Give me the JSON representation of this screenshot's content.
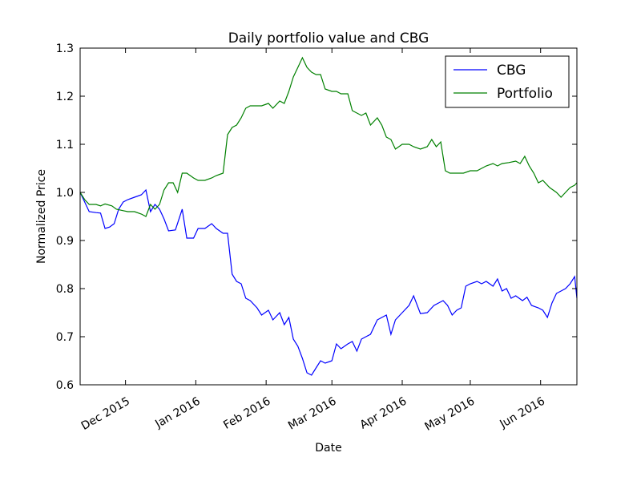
{
  "chart_data": {
    "type": "line",
    "title": "Daily portfolio value and CBG",
    "xlabel": "Date",
    "ylabel": "Normalized Price",
    "ylim": [
      0.6,
      1.3
    ],
    "xlim": [
      "2015-11-11",
      "2016-06-17"
    ],
    "grid": false,
    "legend_position": "top-right",
    "yticks": [
      0.6,
      0.7,
      0.8,
      0.9,
      1.0,
      1.1,
      1.2,
      1.3
    ],
    "ytick_labels": [
      "0.6",
      "0.7",
      "0.8",
      "0.9",
      "1.0",
      "1.1",
      "1.2",
      "1.3"
    ],
    "xticks": [
      {
        "date": "2015-12-01",
        "label": "Dec 2015"
      },
      {
        "date": "2016-01-01",
        "label": "Jan 2016"
      },
      {
        "date": "2016-02-01",
        "label": "Feb 2016"
      },
      {
        "date": "2016-03-01",
        "label": "Mar 2016"
      },
      {
        "date": "2016-04-01",
        "label": "Apr 2016"
      },
      {
        "date": "2016-05-01",
        "label": "May 2016"
      },
      {
        "date": "2016-06-01",
        "label": "Jun 2016"
      }
    ],
    "series": [
      {
        "name": "CBG",
        "color": "#0000ff",
        "points": [
          [
            "2015-11-11",
            1.0
          ],
          [
            "2015-11-13",
            0.98
          ],
          [
            "2015-11-15",
            0.96
          ],
          [
            "2015-11-18",
            0.958
          ],
          [
            "2015-11-20",
            0.957
          ],
          [
            "2015-11-22",
            0.925
          ],
          [
            "2015-11-24",
            0.928
          ],
          [
            "2015-11-26",
            0.935
          ],
          [
            "2015-11-28",
            0.965
          ],
          [
            "2015-11-30",
            0.98
          ],
          [
            "2015-12-02",
            0.985
          ],
          [
            "2015-12-05",
            0.99
          ],
          [
            "2015-12-08",
            0.995
          ],
          [
            "2015-12-10",
            1.005
          ],
          [
            "2015-12-12",
            0.96
          ],
          [
            "2015-12-14",
            0.975
          ],
          [
            "2015-12-16",
            0.965
          ],
          [
            "2015-12-18",
            0.945
          ],
          [
            "2015-12-20",
            0.92
          ],
          [
            "2015-12-23",
            0.922
          ],
          [
            "2015-12-26",
            0.965
          ],
          [
            "2015-12-28",
            0.905
          ],
          [
            "2015-12-31",
            0.905
          ],
          [
            "2016-01-02",
            0.925
          ],
          [
            "2016-01-05",
            0.925
          ],
          [
            "2016-01-08",
            0.935
          ],
          [
            "2016-01-10",
            0.925
          ],
          [
            "2016-01-13",
            0.915
          ],
          [
            "2016-01-15",
            0.915
          ],
          [
            "2016-01-17",
            0.83
          ],
          [
            "2016-01-19",
            0.815
          ],
          [
            "2016-01-21",
            0.81
          ],
          [
            "2016-01-23",
            0.78
          ],
          [
            "2016-01-25",
            0.775
          ],
          [
            "2016-01-28",
            0.76
          ],
          [
            "2016-01-30",
            0.745
          ],
          [
            "2016-02-02",
            0.755
          ],
          [
            "2016-02-04",
            0.735
          ],
          [
            "2016-02-07",
            0.75
          ],
          [
            "2016-02-09",
            0.725
          ],
          [
            "2016-02-11",
            0.74
          ],
          [
            "2016-02-13",
            0.695
          ],
          [
            "2016-02-15",
            0.68
          ],
          [
            "2016-02-17",
            0.655
          ],
          [
            "2016-02-19",
            0.625
          ],
          [
            "2016-02-21",
            0.62
          ],
          [
            "2016-02-23",
            0.635
          ],
          [
            "2016-02-25",
            0.65
          ],
          [
            "2016-02-27",
            0.645
          ],
          [
            "2016-03-01",
            0.65
          ],
          [
            "2016-03-03",
            0.685
          ],
          [
            "2016-03-05",
            0.675
          ],
          [
            "2016-03-08",
            0.685
          ],
          [
            "2016-03-10",
            0.69
          ],
          [
            "2016-03-12",
            0.67
          ],
          [
            "2016-03-14",
            0.695
          ],
          [
            "2016-03-16",
            0.7
          ],
          [
            "2016-03-18",
            0.705
          ],
          [
            "2016-03-21",
            0.735
          ],
          [
            "2016-03-23",
            0.74
          ],
          [
            "2016-03-25",
            0.745
          ],
          [
            "2016-03-27",
            0.705
          ],
          [
            "2016-03-29",
            0.735
          ],
          [
            "2016-04-01",
            0.75
          ],
          [
            "2016-04-04",
            0.765
          ],
          [
            "2016-04-06",
            0.785
          ],
          [
            "2016-04-09",
            0.748
          ],
          [
            "2016-04-12",
            0.75
          ],
          [
            "2016-04-15",
            0.765
          ],
          [
            "2016-04-17",
            0.77
          ],
          [
            "2016-04-19",
            0.775
          ],
          [
            "2016-04-21",
            0.765
          ],
          [
            "2016-04-23",
            0.745
          ],
          [
            "2016-04-25",
            0.755
          ],
          [
            "2016-04-27",
            0.76
          ],
          [
            "2016-04-29",
            0.805
          ],
          [
            "2016-05-01",
            0.81
          ],
          [
            "2016-05-04",
            0.815
          ],
          [
            "2016-05-06",
            0.81
          ],
          [
            "2016-05-08",
            0.815
          ],
          [
            "2016-05-11",
            0.805
          ],
          [
            "2016-05-13",
            0.82
          ],
          [
            "2016-05-15",
            0.795
          ],
          [
            "2016-05-17",
            0.8
          ],
          [
            "2016-05-19",
            0.78
          ],
          [
            "2016-05-21",
            0.785
          ],
          [
            "2016-05-24",
            0.775
          ],
          [
            "2016-05-26",
            0.782
          ],
          [
            "2016-05-28",
            0.765
          ],
          [
            "2016-05-31",
            0.76
          ],
          [
            "2016-06-02",
            0.755
          ],
          [
            "2016-06-04",
            0.74
          ],
          [
            "2016-06-06",
            0.77
          ],
          [
            "2016-06-08",
            0.79
          ],
          [
            "2016-06-10",
            0.795
          ],
          [
            "2016-06-12",
            0.8
          ],
          [
            "2016-06-14",
            0.81
          ],
          [
            "2016-06-16",
            0.825
          ],
          [
            "2016-06-17",
            0.78
          ]
        ]
      },
      {
        "name": "Portfolio",
        "color": "#008000",
        "points": [
          [
            "2015-11-11",
            1.0
          ],
          [
            "2015-11-13",
            0.985
          ],
          [
            "2015-11-15",
            0.975
          ],
          [
            "2015-11-18",
            0.975
          ],
          [
            "2015-11-20",
            0.972
          ],
          [
            "2015-11-22",
            0.976
          ],
          [
            "2015-11-25",
            0.972
          ],
          [
            "2015-11-27",
            0.965
          ],
          [
            "2015-11-30",
            0.962
          ],
          [
            "2015-12-02",
            0.96
          ],
          [
            "2015-12-05",
            0.96
          ],
          [
            "2015-12-08",
            0.955
          ],
          [
            "2015-12-10",
            0.95
          ],
          [
            "2015-12-12",
            0.975
          ],
          [
            "2015-12-14",
            0.965
          ],
          [
            "2015-12-16",
            0.975
          ],
          [
            "2015-12-18",
            1.005
          ],
          [
            "2015-12-20",
            1.02
          ],
          [
            "2015-12-22",
            1.02
          ],
          [
            "2015-12-24",
            1.0
          ],
          [
            "2015-12-26",
            1.04
          ],
          [
            "2015-12-28",
            1.04
          ],
          [
            "2015-12-31",
            1.03
          ],
          [
            "2016-01-02",
            1.025
          ],
          [
            "2016-01-05",
            1.025
          ],
          [
            "2016-01-08",
            1.03
          ],
          [
            "2016-01-10",
            1.035
          ],
          [
            "2016-01-13",
            1.04
          ],
          [
            "2016-01-15",
            1.12
          ],
          [
            "2016-01-17",
            1.135
          ],
          [
            "2016-01-19",
            1.14
          ],
          [
            "2016-01-21",
            1.155
          ],
          [
            "2016-01-23",
            1.175
          ],
          [
            "2016-01-25",
            1.18
          ],
          [
            "2016-01-28",
            1.18
          ],
          [
            "2016-01-30",
            1.18
          ],
          [
            "2016-02-02",
            1.185
          ],
          [
            "2016-02-04",
            1.175
          ],
          [
            "2016-02-07",
            1.19
          ],
          [
            "2016-02-09",
            1.185
          ],
          [
            "2016-02-11",
            1.21
          ],
          [
            "2016-02-13",
            1.24
          ],
          [
            "2016-02-15",
            1.26
          ],
          [
            "2016-02-17",
            1.28
          ],
          [
            "2016-02-19",
            1.26
          ],
          [
            "2016-02-21",
            1.25
          ],
          [
            "2016-02-23",
            1.245
          ],
          [
            "2016-02-25",
            1.245
          ],
          [
            "2016-02-27",
            1.215
          ],
          [
            "2016-03-01",
            1.21
          ],
          [
            "2016-03-03",
            1.21
          ],
          [
            "2016-03-05",
            1.205
          ],
          [
            "2016-03-08",
            1.205
          ],
          [
            "2016-03-10",
            1.17
          ],
          [
            "2016-03-12",
            1.165
          ],
          [
            "2016-03-14",
            1.16
          ],
          [
            "2016-03-16",
            1.165
          ],
          [
            "2016-03-18",
            1.14
          ],
          [
            "2016-03-21",
            1.155
          ],
          [
            "2016-03-23",
            1.14
          ],
          [
            "2016-03-25",
            1.115
          ],
          [
            "2016-03-27",
            1.11
          ],
          [
            "2016-03-29",
            1.09
          ],
          [
            "2016-04-01",
            1.1
          ],
          [
            "2016-04-04",
            1.1
          ],
          [
            "2016-04-06",
            1.095
          ],
          [
            "2016-04-09",
            1.09
          ],
          [
            "2016-04-12",
            1.095
          ],
          [
            "2016-04-14",
            1.11
          ],
          [
            "2016-04-16",
            1.095
          ],
          [
            "2016-04-18",
            1.105
          ],
          [
            "2016-04-20",
            1.045
          ],
          [
            "2016-04-22",
            1.04
          ],
          [
            "2016-04-25",
            1.04
          ],
          [
            "2016-04-28",
            1.04
          ],
          [
            "2016-05-01",
            1.045
          ],
          [
            "2016-05-04",
            1.045
          ],
          [
            "2016-05-06",
            1.05
          ],
          [
            "2016-05-08",
            1.055
          ],
          [
            "2016-05-11",
            1.06
          ],
          [
            "2016-05-13",
            1.055
          ],
          [
            "2016-05-15",
            1.06
          ],
          [
            "2016-05-18",
            1.062
          ],
          [
            "2016-05-21",
            1.065
          ],
          [
            "2016-05-23",
            1.06
          ],
          [
            "2016-05-25",
            1.075
          ],
          [
            "2016-05-27",
            1.055
          ],
          [
            "2016-05-29",
            1.04
          ],
          [
            "2016-05-31",
            1.02
          ],
          [
            "2016-06-02",
            1.025
          ],
          [
            "2016-06-05",
            1.01
          ],
          [
            "2016-06-08",
            1.0
          ],
          [
            "2016-06-10",
            0.99
          ],
          [
            "2016-06-12",
            1.0
          ],
          [
            "2016-06-14",
            1.01
          ],
          [
            "2016-06-16",
            1.015
          ],
          [
            "2016-06-17",
            1.02
          ]
        ]
      }
    ]
  }
}
